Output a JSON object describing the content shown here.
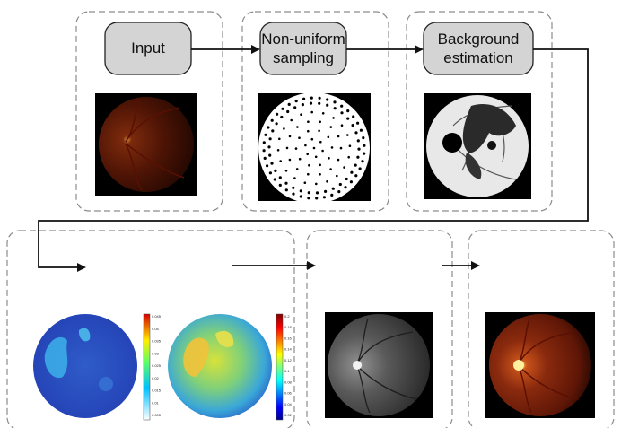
{
  "stages": [
    {
      "id": "input",
      "lines": [
        "Input"
      ]
    },
    {
      "id": "sampling",
      "lines": [
        "Non-uniform",
        "sampling"
      ]
    },
    {
      "id": "background",
      "lines": [
        "Background",
        "estimation"
      ]
    }
  ],
  "colorbars": [
    {
      "id": "left",
      "ticks": [
        "0.045",
        "0.04",
        "0.035",
        "0.03",
        "0.025",
        "0.02",
        "0.015",
        "0.01",
        "0.005"
      ]
    },
    {
      "id": "right",
      "ticks": [
        "0.2",
        "0.18",
        "0.16",
        "0.14",
        "0.12",
        "0.1",
        "0.08",
        "0.06",
        "0.04",
        "0.02"
      ]
    }
  ],
  "colors": {
    "box_fill": "#d4d4d4",
    "box_stroke": "#222222",
    "panel_dash": "#8c8c8c",
    "arrow": "#111111"
  }
}
